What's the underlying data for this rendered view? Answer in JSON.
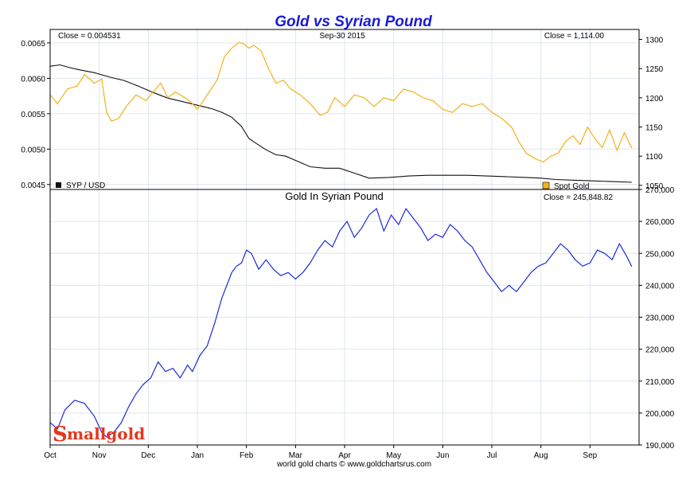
{
  "page": {
    "title": "Gold vs Syrian Pound",
    "credit": "world gold charts © www.goldchartsrus.com",
    "logo_text": "mallgold",
    "logo_initial": "S"
  },
  "colors": {
    "title": "#1a1ad6",
    "syp_line": "#111111",
    "gold_line": "#f2b21a",
    "gold_in_syp_line": "#1f2bd6",
    "logo": "#e4371e",
    "grid": "#dfe6ee"
  },
  "chart_data": [
    {
      "type": "line",
      "title": "Gold vs Syrian Pound",
      "header": {
        "left_close": "Close = 0.004531",
        "date": "Sep-30  2015",
        "right_close": "Close = 1,114.00"
      },
      "legend": [
        {
          "label": "SYP / USD",
          "color": "#111111",
          "placement": "bottom-left"
        },
        {
          "label": "Spot Gold",
          "color": "#f2b21a",
          "placement": "bottom-right"
        }
      ],
      "y_left": {
        "ticks": [
          "0.0045",
          "0.0050",
          "0.0055",
          "0.0060",
          "0.0065"
        ],
        "range": [
          0.00443,
          0.00669
        ]
      },
      "y_right": {
        "ticks": [
          "1050",
          "1100",
          "1150",
          "1200",
          "1250",
          "1300"
        ],
        "range": [
          1043,
          1317
        ]
      },
      "x_range": [
        0,
        12
      ],
      "series": [
        {
          "name": "SYP / USD",
          "axis": "left",
          "x": [
            0,
            0.2,
            0.4,
            0.6,
            0.9,
            1.2,
            1.5,
            1.8,
            2.1,
            2.4,
            2.7,
            3.0,
            3.3,
            3.5,
            3.7,
            3.9,
            4.05,
            4.2,
            4.4,
            4.6,
            4.8,
            5.0,
            5.3,
            5.6,
            5.9,
            6.2,
            6.5,
            6.9,
            7.3,
            7.7,
            8.1,
            8.5,
            8.9,
            9.3,
            9.7,
            10.0,
            10.3,
            10.7,
            11.1,
            11.5,
            11.85
          ],
          "y": [
            0.00617,
            0.00619,
            0.00615,
            0.00612,
            0.00608,
            0.00602,
            0.00597,
            0.00589,
            0.0058,
            0.00572,
            0.00567,
            0.00562,
            0.00557,
            0.00552,
            0.00545,
            0.00532,
            0.00515,
            0.00508,
            0.00499,
            0.00492,
            0.0049,
            0.00484,
            0.00475,
            0.00473,
            0.00473,
            0.00466,
            0.00459,
            0.0046,
            0.00462,
            0.00463,
            0.00463,
            0.00463,
            0.00462,
            0.00461,
            0.0046,
            0.00459,
            0.00457,
            0.00456,
            0.00455,
            0.00454,
            0.004531
          ]
        },
        {
          "name": "Spot Gold",
          "axis": "right",
          "x": [
            0,
            0.15,
            0.35,
            0.55,
            0.7,
            0.9,
            1.05,
            1.15,
            1.25,
            1.4,
            1.55,
            1.75,
            1.95,
            2.1,
            2.25,
            2.4,
            2.55,
            2.75,
            2.9,
            3.0,
            3.2,
            3.4,
            3.55,
            3.7,
            3.85,
            3.95,
            4.05,
            4.15,
            4.3,
            4.45,
            4.6,
            4.75,
            4.9,
            5.1,
            5.3,
            5.5,
            5.65,
            5.8,
            6.0,
            6.2,
            6.4,
            6.6,
            6.8,
            7.0,
            7.2,
            7.4,
            7.6,
            7.8,
            8.0,
            8.2,
            8.4,
            8.6,
            8.8,
            9.0,
            9.2,
            9.4,
            9.55,
            9.7,
            9.9,
            10.05,
            10.2,
            10.35,
            10.5,
            10.65,
            10.8,
            10.95,
            11.1,
            11.25,
            11.4,
            11.55,
            11.7,
            11.85
          ],
          "y": [
            1205,
            1190,
            1215,
            1220,
            1240,
            1225,
            1232,
            1175,
            1160,
            1165,
            1185,
            1205,
            1195,
            1210,
            1225,
            1200,
            1210,
            1200,
            1190,
            1180,
            1205,
            1230,
            1270,
            1285,
            1295,
            1292,
            1285,
            1290,
            1280,
            1250,
            1225,
            1230,
            1215,
            1205,
            1190,
            1170,
            1175,
            1200,
            1185,
            1205,
            1200,
            1185,
            1200,
            1195,
            1215,
            1210,
            1200,
            1195,
            1180,
            1175,
            1190,
            1185,
            1190,
            1175,
            1165,
            1150,
            1125,
            1105,
            1095,
            1090,
            1100,
            1105,
            1125,
            1135,
            1120,
            1150,
            1130,
            1115,
            1145,
            1110,
            1140,
            1114
          ]
        }
      ]
    },
    {
      "type": "line",
      "title": "Gold In Syrian Pound",
      "header": {
        "right_close": "Close = 245,848.82"
      },
      "y_right": {
        "ticks": [
          "190,000",
          "200,000",
          "210,000",
          "220,000",
          "230,000",
          "240,000",
          "250,000",
          "260,000",
          "270,000"
        ],
        "range": [
          190000,
          270000
        ]
      },
      "x": {
        "ticks": [
          "Oct",
          "Nov",
          "Dec",
          "Jan",
          "Feb",
          "Mar",
          "Apr",
          "May",
          "Jun",
          "Jul",
          "Aug",
          "Sep"
        ],
        "range": [
          0,
          12
        ]
      },
      "series": [
        {
          "name": "Gold In Syrian Pound",
          "x": [
            0,
            0.15,
            0.3,
            0.5,
            0.7,
            0.9,
            1.05,
            1.15,
            1.3,
            1.45,
            1.6,
            1.75,
            1.9,
            2.05,
            2.2,
            2.35,
            2.5,
            2.65,
            2.8,
            2.9,
            3.05,
            3.2,
            3.35,
            3.5,
            3.6,
            3.7,
            3.8,
            3.9,
            4.0,
            4.1,
            4.25,
            4.4,
            4.55,
            4.7,
            4.85,
            5.0,
            5.15,
            5.3,
            5.45,
            5.6,
            5.75,
            5.9,
            6.05,
            6.2,
            6.35,
            6.5,
            6.65,
            6.8,
            6.95,
            7.1,
            7.25,
            7.4,
            7.55,
            7.7,
            7.85,
            8.0,
            8.15,
            8.3,
            8.45,
            8.6,
            8.75,
            8.9,
            9.05,
            9.2,
            9.35,
            9.5,
            9.65,
            9.8,
            9.95,
            10.1,
            10.25,
            10.4,
            10.55,
            10.7,
            10.85,
            11.0,
            11.15,
            11.3,
            11.45,
            11.6,
            11.75,
            11.85
          ],
          "y": [
            197000,
            195000,
            201000,
            204000,
            203000,
            199000,
            194000,
            192500,
            194000,
            197000,
            202000,
            206000,
            209000,
            211000,
            216000,
            213000,
            214000,
            211000,
            215000,
            213000,
            218000,
            221000,
            228000,
            236000,
            240000,
            244000,
            246000,
            247000,
            251000,
            250000,
            245000,
            248000,
            245000,
            243000,
            244000,
            242000,
            244000,
            247000,
            251000,
            254000,
            252000,
            257000,
            260000,
            255000,
            258000,
            262000,
            264000,
            257000,
            262000,
            259000,
            264000,
            261000,
            258000,
            254000,
            256000,
            255000,
            259000,
            257000,
            254000,
            252000,
            248000,
            244000,
            241000,
            238000,
            240000,
            238000,
            241000,
            244000,
            246000,
            247000,
            250000,
            253000,
            251000,
            248000,
            246000,
            247000,
            251000,
            250000,
            248000,
            253000,
            249000,
            245849
          ]
        }
      ]
    }
  ]
}
